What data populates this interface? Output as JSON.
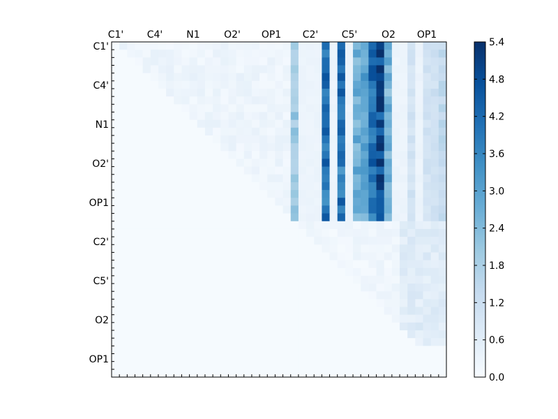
{
  "chart_data": {
    "type": "heatmap",
    "title": "",
    "xlabel": "",
    "ylabel": "",
    "x_tick_labels": [
      "C1'",
      "C4'",
      "N1",
      "O2'",
      "OP1",
      "C2'",
      "C5'",
      "O2",
      "OP1"
    ],
    "y_tick_labels": [
      "C1'",
      "C4'",
      "N1",
      "O2'",
      "OP1",
      "C2'",
      "C5'",
      "O2",
      "OP1"
    ],
    "n_rows": 43,
    "n_cols": 43,
    "colormap": "Blues",
    "colors": {
      "low": "#f7fbff",
      "high": "#08306b"
    },
    "colorbar": {
      "min": 0.0,
      "max": 5.4,
      "tick_labels": [
        "0.0",
        "0.6",
        "1.2",
        "1.8",
        "2.4",
        "3.0",
        "3.6",
        "4.2",
        "4.8",
        "5.4"
      ]
    },
    "column_bands": [
      {
        "col": 23,
        "level": 2.0
      },
      {
        "col": 27,
        "level": 4.2
      },
      {
        "col": 29,
        "level": 3.9
      },
      {
        "col": 31,
        "level": 2.7
      },
      {
        "col": 32,
        "level": 2.9
      },
      {
        "col": 33,
        "level": 4.3
      },
      {
        "col": 34,
        "level": 4.9
      },
      {
        "col": 35,
        "level": 2.6
      },
      {
        "col": 38,
        "level": 1.0
      },
      {
        "col": 40,
        "level": 1.0
      },
      {
        "col": 41,
        "level": 1.1
      },
      {
        "col": 42,
        "level": 1.4
      }
    ],
    "upper_block": {
      "rows": [
        0,
        22
      ],
      "cols": [
        23,
        42
      ],
      "note_values": "see column_bands"
    },
    "lower_right_block": {
      "rows": [
        23,
        38
      ],
      "cols": [
        37,
        42
      ],
      "level": 0.9
    },
    "background_level": 0.05
  }
}
